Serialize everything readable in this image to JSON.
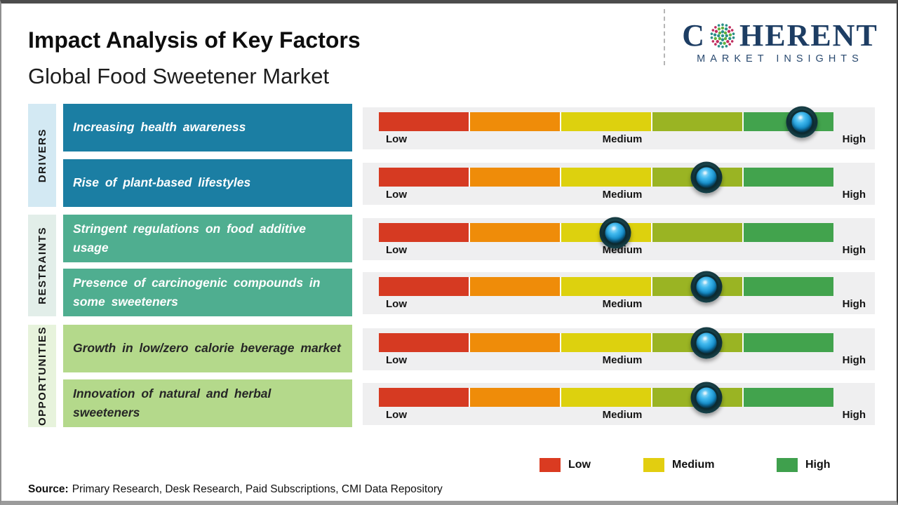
{
  "header": {
    "title": "Impact Analysis of Key Factors",
    "subtitle": "Global Food Sweetener Market"
  },
  "logo": {
    "word_start": "C",
    "word_end": "HERENT",
    "tagline": "MARKET INSIGHTS",
    "globe_icon": "dotted-globe-icon"
  },
  "groups": [
    {
      "label": "DRIVERS"
    },
    {
      "label": "RESTRAINTS"
    },
    {
      "label": "OPPORTUNITIES"
    }
  ],
  "scale": {
    "low": "Low",
    "medium": "Medium",
    "high": "High"
  },
  "rows": [
    {
      "group": "DRIVERS",
      "factor": "Increasing health awareness",
      "impact_percent": 93
    },
    {
      "group": "DRIVERS",
      "factor": "Rise of plant-based lifestyles",
      "impact_percent": 72
    },
    {
      "group": "RESTRAINTS",
      "factor": "Stringent regulations on food additive usage",
      "impact_percent": 52
    },
    {
      "group": "RESTRAINTS",
      "factor": "Presence of carcinogenic compounds in some sweeteners",
      "impact_percent": 72
    },
    {
      "group": "OPPORTUNITIES",
      "factor": "Growth in low/zero calorie beverage market",
      "impact_percent": 72
    },
    {
      "group": "OPPORTUNITIES",
      "factor": "Innovation of natural and herbal sweeteners",
      "impact_percent": 72
    }
  ],
  "legend": [
    {
      "label": "Low",
      "color": "#da3b21"
    },
    {
      "label": "Medium",
      "color": "#e2ce10"
    },
    {
      "label": "High",
      "color": "#3fa04d"
    }
  ],
  "source": {
    "label": "Source:",
    "text": "Primary Research, Desk Research, Paid Subscriptions, CMI Data Repository"
  },
  "colors": {
    "bar_segments": [
      "#d63a22",
      "#ef8c09",
      "#ddd10e",
      "#9ab423",
      "#42a34d"
    ],
    "marker_blue": "#2fa9e8",
    "drivers_box": "#1b7ea3",
    "restraints_box": "#4fae90",
    "opportunities_box": "#b4d98b",
    "logo_navy": "#1d3d63",
    "logo_teal": "#2a8f89",
    "logo_green": "#63b13e",
    "logo_crimson": "#c02d5e"
  },
  "chart_data": {
    "type": "bar",
    "title": "Impact Analysis of Key Factors",
    "subtitle": "Global Food Sweetener Market",
    "categories": [
      "Increasing health awareness",
      "Rise of plant-based lifestyles",
      "Stringent regulations on food additive usage",
      "Presence of carcinogenic compounds in some sweeteners",
      "Growth in low/zero calorie beverage market",
      "Innovation of natural and herbal sweeteners"
    ],
    "groups": [
      "Drivers",
      "Drivers",
      "Restraints",
      "Restraints",
      "Opportunities",
      "Opportunities"
    ],
    "values": [
      93,
      72,
      52,
      72,
      72,
      72
    ],
    "value_scale": {
      "range": [
        0,
        100
      ],
      "tick_labels": [
        "Low",
        "Medium",
        "High"
      ]
    },
    "legend": [
      "Low",
      "Medium",
      "High"
    ],
    "legend_position": "bottom",
    "source": "Primary Research, Desk Research, Paid Subscriptions, CMI Data Repository"
  }
}
